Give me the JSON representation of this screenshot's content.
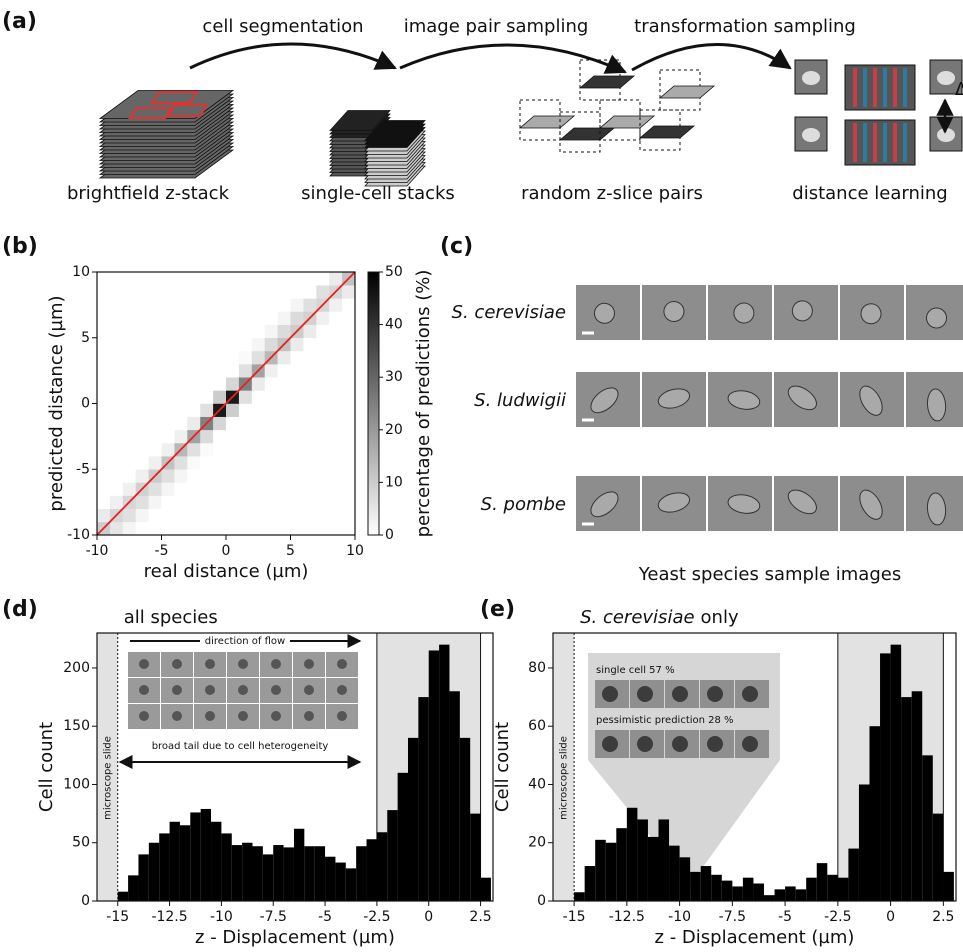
{
  "pipeline": {
    "label": "(a)",
    "arrows": [
      "cell segmentation",
      "image pair sampling",
      "transformation sampling"
    ],
    "stages": [
      "brightfield z-stack",
      "single-cell stacks",
      "random z-slice pairs",
      "distance learning"
    ],
    "delta": "Δ"
  },
  "samples": {
    "label": "(c)",
    "species": [
      "S. cerevisiae",
      "S. ludwigii",
      "S. pombe"
    ],
    "caption": "Yeast species sample images"
  },
  "chart_data": [
    {
      "panel": "(b)",
      "type": "heatmap",
      "xlabel": "real distance (µm)",
      "ylabel": "predicted distance (µm)",
      "xlim": [
        -10,
        10
      ],
      "ylim": [
        -10,
        10
      ],
      "xticks": [
        -10,
        -5,
        0,
        5,
        10
      ],
      "yticks": [
        -10,
        -5,
        0,
        5,
        10
      ],
      "z": [
        [
          10,
          5,
          2,
          0,
          0,
          0,
          0,
          0,
          0,
          0,
          0,
          0,
          0,
          0,
          0,
          0,
          0,
          0,
          0,
          0
        ],
        [
          4,
          8,
          6,
          2,
          0,
          0,
          0,
          0,
          0,
          0,
          0,
          0,
          0,
          0,
          0,
          0,
          0,
          0,
          0,
          0
        ],
        [
          0,
          3,
          8,
          6,
          2,
          0,
          0,
          0,
          0,
          0,
          0,
          0,
          0,
          0,
          0,
          0,
          0,
          0,
          0,
          0
        ],
        [
          0,
          0,
          3,
          9,
          6,
          2,
          0,
          0,
          0,
          0,
          0,
          0,
          0,
          0,
          0,
          0,
          0,
          0,
          0,
          0
        ],
        [
          0,
          0,
          0,
          3,
          10,
          6,
          2,
          0,
          0,
          0,
          0,
          0,
          0,
          0,
          0,
          0,
          0,
          0,
          0,
          0
        ],
        [
          0,
          0,
          0,
          0,
          3,
          12,
          6,
          1,
          0,
          0,
          0,
          0,
          0,
          0,
          0,
          0,
          0,
          0,
          0,
          0
        ],
        [
          0,
          0,
          0,
          0,
          0,
          3,
          14,
          6,
          1,
          0,
          0,
          0,
          0,
          0,
          0,
          0,
          0,
          0,
          0,
          0
        ],
        [
          0,
          0,
          0,
          0,
          0,
          0,
          3,
          18,
          7,
          0,
          0,
          0,
          0,
          0,
          0,
          0,
          0,
          0,
          0,
          0
        ],
        [
          0,
          0,
          0,
          0,
          0,
          0,
          0,
          4,
          25,
          8,
          0,
          0,
          0,
          0,
          0,
          0,
          0,
          0,
          0,
          0
        ],
        [
          0,
          0,
          0,
          0,
          0,
          0,
          0,
          0,
          6,
          45,
          10,
          0,
          0,
          0,
          0,
          0,
          0,
          0,
          0,
          0
        ],
        [
          0,
          0,
          0,
          0,
          0,
          0,
          0,
          0,
          0,
          10,
          45,
          6,
          0,
          0,
          0,
          0,
          0,
          0,
          0,
          0
        ],
        [
          0,
          0,
          0,
          0,
          0,
          0,
          0,
          0,
          0,
          0,
          8,
          25,
          4,
          0,
          0,
          0,
          0,
          0,
          0,
          0
        ],
        [
          0,
          0,
          0,
          0,
          0,
          0,
          0,
          0,
          0,
          0,
          0,
          6,
          18,
          3,
          0,
          0,
          0,
          0,
          0,
          0
        ],
        [
          0,
          0,
          0,
          0,
          0,
          0,
          0,
          0,
          0,
          0,
          0,
          1,
          6,
          14,
          4,
          0,
          0,
          0,
          0,
          0
        ],
        [
          0,
          0,
          0,
          0,
          0,
          0,
          0,
          0,
          0,
          0,
          0,
          0,
          2,
          7,
          12,
          4,
          0,
          0,
          0,
          0
        ],
        [
          0,
          0,
          0,
          0,
          0,
          0,
          0,
          0,
          0,
          0,
          0,
          0,
          0,
          2,
          7,
          10,
          4,
          0,
          0,
          0
        ],
        [
          0,
          0,
          0,
          0,
          0,
          0,
          0,
          0,
          0,
          0,
          0,
          0,
          0,
          0,
          2,
          7,
          9,
          3,
          0,
          0
        ],
        [
          0,
          0,
          0,
          0,
          0,
          0,
          0,
          0,
          0,
          0,
          0,
          0,
          0,
          0,
          0,
          2,
          6,
          8,
          3,
          0
        ],
        [
          0,
          0,
          0,
          0,
          0,
          0,
          0,
          0,
          0,
          0,
          0,
          0,
          0,
          0,
          0,
          0,
          0,
          6,
          8,
          4
        ],
        [
          0,
          0,
          0,
          0,
          0,
          0,
          0,
          0,
          0,
          0,
          0,
          0,
          0,
          0,
          0,
          0,
          0,
          0,
          4,
          12
        ]
      ],
      "colorbar": {
        "label": "percentage of predictions (%)",
        "lim": [
          0,
          50
        ],
        "ticks": [
          0,
          10,
          20,
          30,
          40,
          50
        ]
      },
      "diagonal_color": "#e8211f"
    },
    {
      "panel": "(d)",
      "type": "histogram",
      "title": "all species",
      "xlabel": "z - Displacement (µm)",
      "ylabel": "Cell count",
      "bins": [
        -15,
        -14.5,
        -14,
        -13.5,
        -13,
        -12.5,
        -12,
        -11.5,
        -11,
        -10.5,
        -10,
        -9.5,
        -9,
        -8.5,
        -8,
        -7.5,
        -7,
        -6.5,
        -6,
        -5.5,
        -5,
        -4.5,
        -4,
        -3.5,
        -3,
        -2.5,
        -2,
        -1.5,
        -1,
        -0.5,
        0,
        0.5,
        1,
        1.5,
        2,
        2.5,
        3
      ],
      "values": [
        8,
        22,
        40,
        50,
        58,
        68,
        65,
        76,
        79,
        68,
        58,
        48,
        50,
        47,
        40,
        48,
        46,
        62,
        47,
        47,
        38,
        33,
        28,
        47,
        53,
        59,
        78,
        110,
        140,
        175,
        215,
        220,
        180,
        140,
        75,
        20
      ],
      "color": "#000000",
      "xlim": [
        -16,
        3.1
      ],
      "ylim": [
        0,
        230
      ],
      "xticks": [
        -15,
        -12.5,
        -10,
        -7.5,
        -5,
        -2.5,
        0,
        2.5
      ],
      "yticks": [
        0,
        50,
        100,
        150,
        200
      ],
      "shaded": [
        [
          -16,
          -15
        ],
        [
          -2.5,
          2.5
        ]
      ],
      "shade_color": "#e2e2e2",
      "slide_label": "microscope slide",
      "inset": {
        "top": "direction of flow",
        "bottom": "broad tail due to cell heterogeneity"
      }
    },
    {
      "panel": "(e)",
      "type": "histogram",
      "title": "S. cerevisiae",
      "title_suffix": "only",
      "xlabel": "z - Displacement (µm)",
      "ylabel": "Cell count",
      "bins": [
        -15,
        -14.5,
        -14,
        -13.5,
        -13,
        -12.5,
        -12,
        -11.5,
        -11,
        -10.5,
        -10,
        -9.5,
        -9,
        -8.5,
        -8,
        -7.5,
        -7,
        -6.5,
        -6,
        -5.5,
        -5,
        -4.5,
        -4,
        -3.5,
        -3,
        -2.5,
        -2,
        -1.5,
        -1,
        -0.5,
        0,
        0.5,
        1,
        1.5,
        2,
        2.5,
        3
      ],
      "values": [
        3,
        12,
        21,
        20,
        25,
        32,
        28,
        22,
        28,
        19,
        15,
        10,
        12,
        9,
        7,
        5,
        8,
        6,
        2,
        4,
        5,
        4,
        8,
        13,
        9,
        8,
        18,
        40,
        60,
        85,
        88,
        70,
        72,
        50,
        30,
        10
      ],
      "color": "#000000",
      "xlim": [
        -16,
        3.1
      ],
      "ylim": [
        0,
        92
      ],
      "xticks": [
        -15,
        -12.5,
        -10,
        -7.5,
        -5,
        -2.5,
        0,
        2.5
      ],
      "yticks": [
        0,
        20,
        40,
        60,
        80
      ],
      "shaded": [
        [
          -16,
          -15
        ],
        [
          -2.5,
          2.5
        ]
      ],
      "shade_color": "#e2e2e2",
      "slide_label": "microscope slide",
      "inset": {
        "rows": [
          "single cell 57 %",
          "pessimistic prediction 28 %"
        ]
      }
    }
  ]
}
